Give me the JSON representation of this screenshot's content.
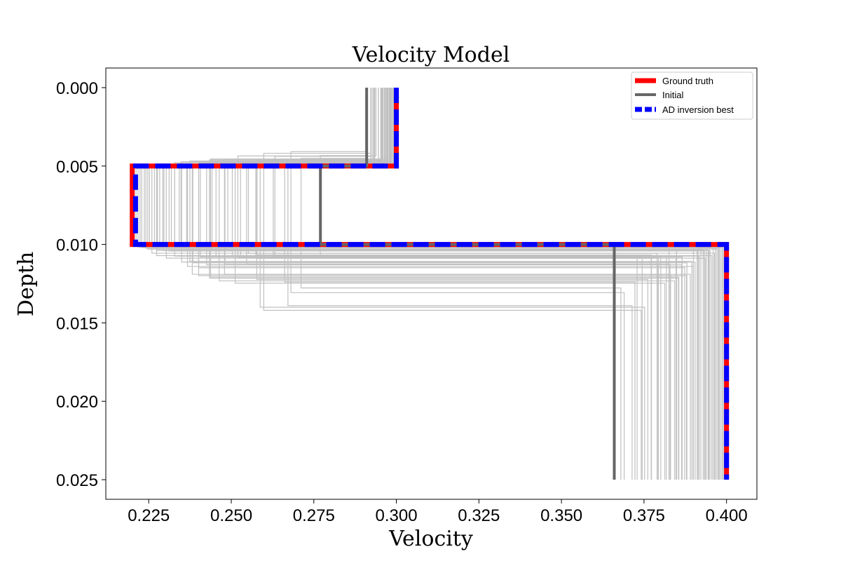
{
  "chart_data": {
    "type": "line",
    "title": "Velocity Model",
    "xlabel": "Velocity",
    "ylabel": "Depth",
    "xlim": [
      0.212,
      0.4092
    ],
    "ylim": [
      0.02625,
      -0.00125
    ],
    "y_inverted": true,
    "x_ticks": [
      0.225,
      0.25,
      0.275,
      0.3,
      0.325,
      0.35,
      0.375,
      0.4
    ],
    "x_tick_labels": [
      "0.225",
      "0.250",
      "0.275",
      "0.300",
      "0.325",
      "0.350",
      "0.375",
      "0.400"
    ],
    "y_ticks": [
      0.0,
      0.005,
      0.01,
      0.015,
      0.02,
      0.025
    ],
    "y_tick_labels": [
      "0.000",
      "0.005",
      "0.010",
      "0.015",
      "0.020",
      "0.025"
    ],
    "legend_position": "top-right",
    "series": [
      {
        "name": "Ground truth",
        "color": "#ff0000",
        "style": "solid",
        "points": [
          [
            0.3,
            0.0
          ],
          [
            0.3,
            0.005
          ],
          [
            0.22,
            0.005
          ],
          [
            0.22,
            0.01
          ],
          [
            0.4,
            0.01
          ],
          [
            0.4,
            0.025
          ]
        ]
      },
      {
        "name": "Initial",
        "color": "#666666",
        "style": "solid",
        "points": [
          [
            0.291,
            0.0
          ],
          [
            0.291,
            0.005
          ],
          [
            0.277,
            0.005
          ],
          [
            0.277,
            0.01
          ],
          [
            0.366,
            0.01
          ],
          [
            0.366,
            0.025
          ]
        ]
      },
      {
        "name": "AD inversion best",
        "color": "#0000ff",
        "style": "dashed",
        "points": [
          [
            0.3,
            0.0
          ],
          [
            0.3,
            0.005
          ],
          [
            0.221,
            0.005
          ],
          [
            0.221,
            0.01
          ],
          [
            0.4,
            0.01
          ],
          [
            0.4,
            0.025
          ]
        ]
      }
    ],
    "iterations_color": "#c0c0c0"
  }
}
